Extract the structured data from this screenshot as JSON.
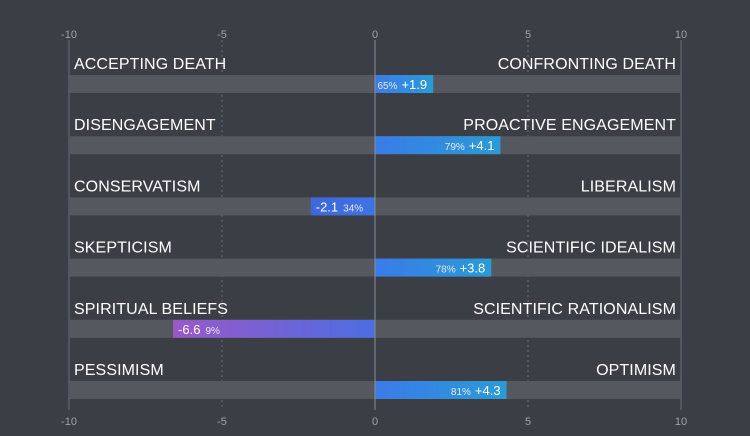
{
  "chart_data": {
    "type": "bar",
    "orientation": "horizontal",
    "xlim": [
      -10,
      10
    ],
    "ticks": [
      "-10",
      "-5",
      "0",
      "5",
      "10"
    ],
    "grid": true,
    "rows": [
      {
        "left_label": "ACCEPTING DEATH",
        "right_label": "CONFRONTING DEATH",
        "value": 1.9,
        "value_label": "+1.9",
        "percent_label": "65%",
        "color": "#2f80ed"
      },
      {
        "left_label": "DISENGAGEMENT",
        "right_label": "PROACTIVE ENGAGEMENT",
        "value": 4.1,
        "value_label": "+4.1",
        "percent_label": "79%",
        "color": "#2f80ed"
      },
      {
        "left_label": "CONSERVATISM",
        "right_label": "LIBERALISM",
        "value": -2.1,
        "value_label": "-2.1",
        "percent_label": "34%",
        "color": "#3b6fe0"
      },
      {
        "left_label": "SKEPTICISM",
        "right_label": "SCIENTIFIC IDEALISM",
        "value": 3.8,
        "value_label": "+3.8",
        "percent_label": "78%",
        "color": "#2f80ed"
      },
      {
        "left_label": "SPIRITUAL BELIEFS",
        "right_label": "SCIENTIFIC RATIONALISM",
        "value": -6.6,
        "value_label": "-6.6",
        "percent_label": "9%",
        "color": "#8a5cd6"
      },
      {
        "left_label": "PESSIMISM",
        "right_label": "OPTIMISM",
        "value": 4.3,
        "value_label": "+4.3",
        "percent_label": "81%",
        "color": "#2f80ed"
      }
    ],
    "colors": {
      "background": "#3b3e45",
      "track": "#55585e",
      "grid": "#6b6f77",
      "zero_line": "#8a8e96",
      "tick": "#9fa3aa"
    }
  }
}
